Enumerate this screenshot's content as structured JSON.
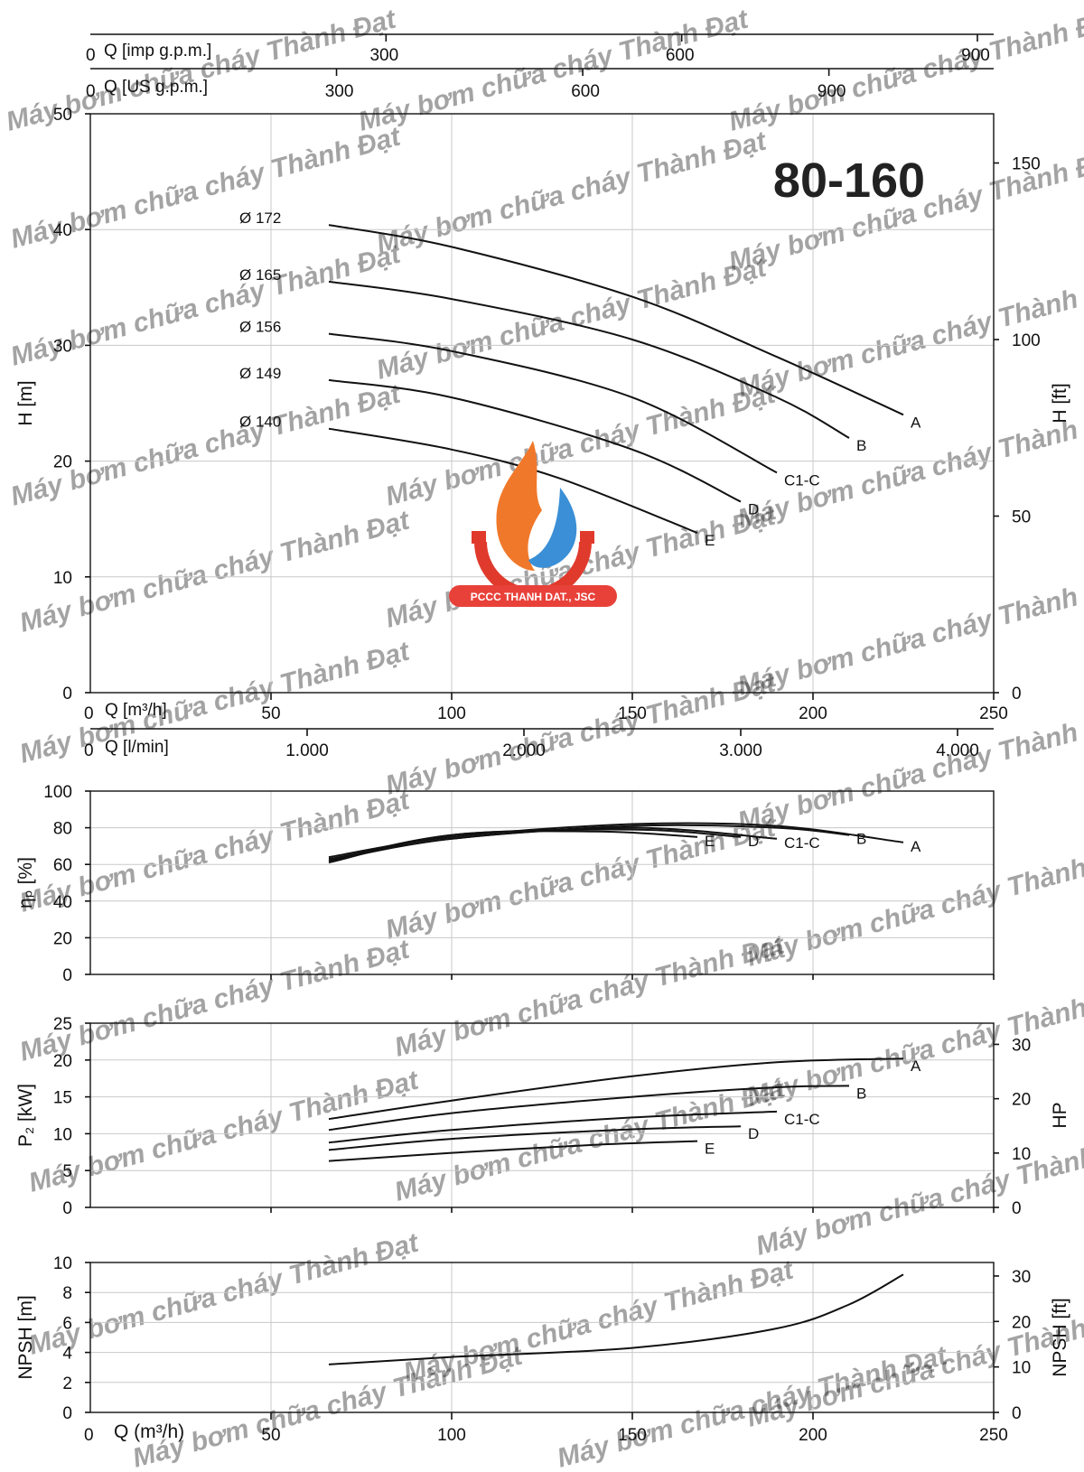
{
  "colors": {
    "curve": "#111111",
    "grid": "#c8c8c8",
    "watermark": "#e45b5b",
    "logo_flame": "#f0782a",
    "logo_drop": "#3a8fd6",
    "logo_gear": "#e03a2c",
    "logo_banner": "#e8413a"
  },
  "model": "80-160",
  "watermark_text": "Máy bơm chữa cháy Thành Đạt",
  "logo": {
    "banner_text": "PCCC THANH DAT., JSC"
  },
  "top_axes": {
    "imp": {
      "label": "Q [imp g.p.m.]",
      "zero": "0",
      "ticks": [
        "300",
        "600",
        "900"
      ]
    },
    "us": {
      "label": "Q [US g.p.m.]",
      "zero": "0",
      "ticks": [
        "300",
        "600",
        "900"
      ]
    }
  },
  "h_axis": {
    "ylabel": "H [m]",
    "ylabel_right": "H [ft]",
    "yticks": [
      "50",
      "40",
      "30",
      "20",
      "10",
      "0"
    ],
    "yticks_right": [
      "150",
      "100",
      "50",
      "0"
    ]
  },
  "q_axis": {
    "label": "Q [m³/h]",
    "zero": "0",
    "ticks": [
      "50",
      "100",
      "150",
      "200",
      "250"
    ],
    "lmin_label": "Q [l/min]",
    "lmin_zero": "0",
    "lmin_ticks": [
      "1.000",
      "2.000",
      "3.000",
      "4.000"
    ]
  },
  "eff_axis": {
    "ylabel": "ηₚ [%]",
    "yticks": [
      "100",
      "80",
      "60",
      "40",
      "20",
      "0"
    ]
  },
  "power_axis": {
    "ylabel": "P₂ [kW]",
    "ylabel_right": "HP",
    "yticks": [
      "25",
      "20",
      "15",
      "10",
      "5",
      "0"
    ],
    "yticks_right": [
      "30",
      "20",
      "10",
      "0"
    ]
  },
  "npsh_axis": {
    "ylabel": "NPSH [m]",
    "ylabel_right": "NPSH [ft]",
    "yticks": [
      "10",
      "8",
      "6",
      "4",
      "2",
      "0"
    ],
    "yticks_right": [
      "30",
      "20",
      "10",
      "0"
    ]
  },
  "bottom_axis": {
    "label": "Q (m³/h)",
    "zero": "0",
    "ticks": [
      "50",
      "100",
      "150",
      "200",
      "250"
    ]
  },
  "chart_data": [
    {
      "type": "line",
      "xlabel": "Q [m³/h]",
      "ylabel": "H [m]",
      "xlim": [
        0,
        250
      ],
      "ylim": [
        0,
        50
      ],
      "secondary_axes": {
        "right": "H [ft]",
        "top": [
          "Q [imp g.p.m.]",
          "Q [US g.p.m.]"
        ],
        "bottom": "Q [l/min]"
      },
      "series": [
        {
          "name": "Ø 172",
          "end_label": "A",
          "x": [
            66,
            100,
            150,
            190,
            225
          ],
          "y": [
            40.4,
            38.5,
            34.2,
            29.0,
            24.0
          ]
        },
        {
          "name": "Ø 165",
          "end_label": "B",
          "x": [
            66,
            100,
            150,
            190,
            210
          ],
          "y": [
            35.5,
            34.0,
            30.5,
            25.5,
            22.0
          ]
        },
        {
          "name": "Ø 156",
          "end_label": "C1-C",
          "x": [
            66,
            100,
            150,
            190
          ],
          "y": [
            31.0,
            29.5,
            25.5,
            19.0
          ]
        },
        {
          "name": "Ø 149",
          "end_label": "D",
          "x": [
            66,
            100,
            150,
            180
          ],
          "y": [
            27.0,
            25.5,
            21.0,
            16.5
          ]
        },
        {
          "name": "Ø 140",
          "end_label": "E",
          "x": [
            66,
            100,
            130,
            168
          ],
          "y": [
            22.8,
            21.0,
            18.5,
            13.8
          ]
        }
      ]
    },
    {
      "type": "line",
      "xlabel": "Q [m³/h]",
      "ylabel": "ηₚ [%]",
      "xlim": [
        0,
        250
      ],
      "ylim": [
        0,
        100
      ],
      "series": [
        {
          "end_label": "A",
          "x": [
            66,
            100,
            150,
            190,
            225
          ],
          "y": [
            64,
            75,
            82,
            81,
            72
          ]
        },
        {
          "end_label": "B",
          "x": [
            66,
            100,
            150,
            190,
            210
          ],
          "y": [
            63,
            74,
            81,
            80,
            76
          ]
        },
        {
          "end_label": "C1-C",
          "x": [
            66,
            100,
            150,
            190
          ],
          "y": [
            62,
            74,
            80,
            74
          ]
        },
        {
          "end_label": "D",
          "x": [
            66,
            100,
            150,
            180
          ],
          "y": [
            62,
            76,
            79,
            75
          ]
        },
        {
          "end_label": "E",
          "x": [
            66,
            100,
            140,
            168
          ],
          "y": [
            61,
            76,
            78,
            75
          ]
        }
      ]
    },
    {
      "type": "line",
      "xlabel": "Q [m³/h]",
      "ylabel": "P₂ [kW]",
      "xlim": [
        0,
        250
      ],
      "ylim": [
        0,
        25
      ],
      "secondary_axes": {
        "right": "HP"
      },
      "series": [
        {
          "end_label": "A",
          "x": [
            66,
            100,
            150,
            190,
            225
          ],
          "y": [
            12.0,
            14.5,
            17.8,
            19.7,
            20.2
          ]
        },
        {
          "end_label": "B",
          "x": [
            66,
            100,
            150,
            190,
            210
          ],
          "y": [
            10.5,
            12.8,
            15.0,
            16.3,
            16.5
          ]
        },
        {
          "end_label": "C1-C",
          "x": [
            66,
            100,
            150,
            190
          ],
          "y": [
            8.8,
            10.5,
            12.2,
            13.0
          ]
        },
        {
          "end_label": "D",
          "x": [
            66,
            100,
            150,
            180
          ],
          "y": [
            7.8,
            9.3,
            10.6,
            11.0
          ]
        },
        {
          "end_label": "E",
          "x": [
            66,
            100,
            140,
            168
          ],
          "y": [
            6.3,
            7.4,
            8.5,
            9.0
          ]
        }
      ]
    },
    {
      "type": "line",
      "xlabel": "Q (m³/h)",
      "ylabel": "NPSH [m]",
      "xlim": [
        0,
        250
      ],
      "ylim": [
        0,
        10
      ],
      "secondary_axes": {
        "right": "NPSH [ft]"
      },
      "series": [
        {
          "x": [
            66,
            100,
            150,
            190,
            210,
            225
          ],
          "y": [
            3.2,
            3.7,
            4.3,
            5.6,
            7.2,
            9.2
          ]
        }
      ]
    }
  ]
}
